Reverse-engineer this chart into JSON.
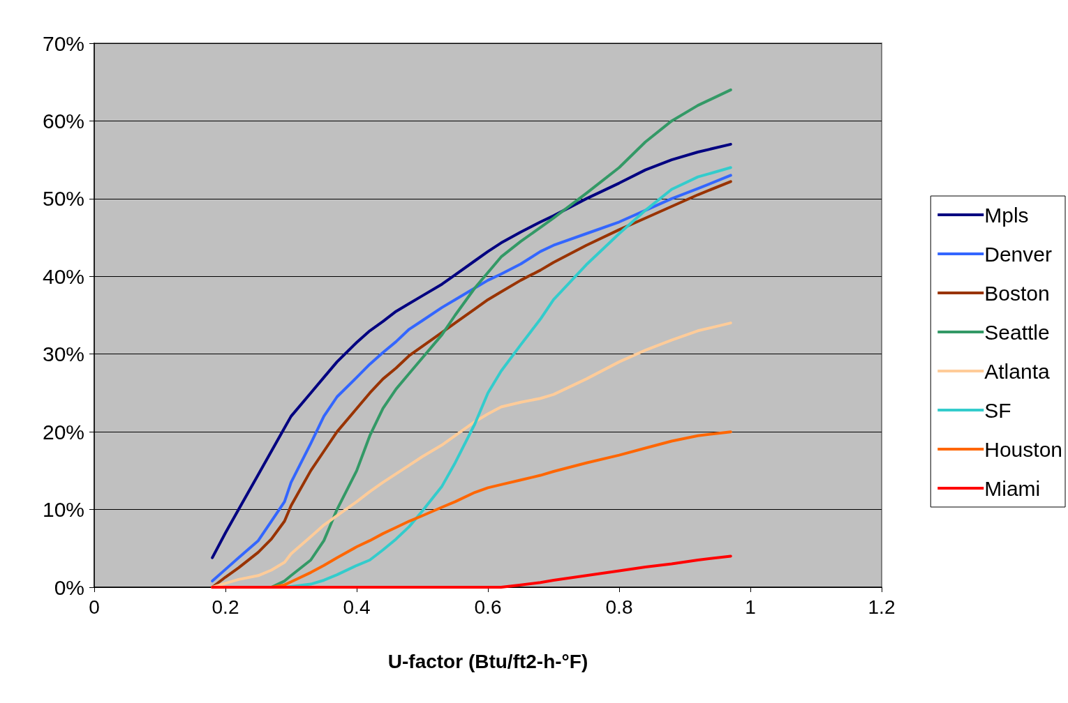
{
  "chart_data": {
    "type": "line",
    "xlabel": "U-factor (Btu/ft2-h-°F)",
    "x": [
      0.18,
      0.2,
      0.22,
      0.25,
      0.27,
      0.29,
      0.3,
      0.33,
      0.35,
      0.37,
      0.4,
      0.42,
      0.44,
      0.46,
      0.48,
      0.5,
      0.53,
      0.55,
      0.58,
      0.6,
      0.62,
      0.65,
      0.68,
      0.7,
      0.75,
      0.8,
      0.84,
      0.88,
      0.92,
      0.97
    ],
    "series": [
      {
        "name": "Mpls",
        "color": "#000080",
        "values": [
          3.8,
          7,
          10,
          14.5,
          17.5,
          20.5,
          22,
          25,
          27,
          29,
          31.5,
          33,
          34.2,
          35.5,
          36.5,
          37.5,
          39,
          40.2,
          42,
          43.2,
          44.3,
          45.7,
          47,
          47.8,
          50,
          52,
          53.7,
          55,
          56,
          57
        ]
      },
      {
        "name": "Denver",
        "color": "#3366ff",
        "values": [
          0.8,
          2.3,
          3.8,
          6,
          8.5,
          11,
          13.5,
          18.5,
          22,
          24.5,
          27,
          28.7,
          30.2,
          31.6,
          33.2,
          34.3,
          36,
          37,
          38.5,
          39.5,
          40.3,
          41.6,
          43.2,
          44,
          45.5,
          47,
          48.5,
          50,
          51.3,
          53
        ]
      },
      {
        "name": "Boston",
        "color": "#993300",
        "values": [
          0,
          1.3,
          2.5,
          4.5,
          6.2,
          8.5,
          10.5,
          15,
          17.5,
          20,
          23,
          25,
          26.8,
          28.2,
          29.8,
          31,
          32.8,
          34,
          35.8,
          37,
          38,
          39.5,
          40.8,
          41.8,
          44,
          46,
          47.5,
          49,
          50.5,
          52.2
        ]
      },
      {
        "name": "Seattle",
        "color": "#339966",
        "values": [
          null,
          null,
          null,
          0,
          0,
          0.8,
          1.5,
          3.5,
          6,
          10,
          15,
          19.5,
          23,
          25.5,
          27.5,
          29.5,
          32.5,
          35,
          38.5,
          40.5,
          42.5,
          44.5,
          46.3,
          47.5,
          50.7,
          54,
          57.3,
          60,
          62,
          64
        ]
      },
      {
        "name": "Atlanta",
        "color": "#ffcc99",
        "values": [
          0,
          0.5,
          1,
          1.5,
          2.2,
          3.2,
          4.3,
          6.5,
          8,
          9.2,
          11,
          12.3,
          13.5,
          14.6,
          15.7,
          16.8,
          18.3,
          19.5,
          21.3,
          22.3,
          23.2,
          23.8,
          24.3,
          24.8,
          26.8,
          29,
          30.5,
          31.8,
          33,
          34
        ]
      },
      {
        "name": "SF",
        "color": "#33cccc",
        "values": [
          null,
          null,
          null,
          null,
          0,
          0,
          0.1,
          0.4,
          0.9,
          1.6,
          2.8,
          3.5,
          4.8,
          6.2,
          7.8,
          9.8,
          13,
          16,
          21,
          25,
          27.8,
          31.2,
          34.5,
          37,
          41.5,
          45.5,
          48.5,
          51.2,
          52.8,
          54
        ]
      },
      {
        "name": "Houston",
        "color": "#ff6600",
        "values": [
          0,
          0,
          0,
          0,
          0,
          0.3,
          0.7,
          1.9,
          2.8,
          3.8,
          5.2,
          6,
          6.9,
          7.7,
          8.5,
          9.2,
          10.3,
          11,
          12.2,
          12.8,
          13.2,
          13.8,
          14.4,
          14.9,
          16,
          17,
          17.9,
          18.8,
          19.5,
          20
        ]
      },
      {
        "name": "Miami",
        "color": "#ff0000",
        "values": [
          0,
          0,
          0,
          0,
          0,
          0,
          0,
          0,
          0,
          0,
          0,
          0,
          0,
          0,
          0,
          0,
          0,
          0,
          0,
          0,
          0,
          0.3,
          0.6,
          0.9,
          1.5,
          2.1,
          2.6,
          3,
          3.5,
          4
        ]
      }
    ],
    "xlim": [
      0,
      1.2
    ],
    "xticks": [
      0,
      0.2,
      0.4,
      0.6,
      0.8,
      1,
      1.2
    ],
    "ylim": [
      0,
      70
    ],
    "yticks": [
      {
        "value": 0,
        "label": "0%"
      },
      {
        "value": 10,
        "label": "10%"
      },
      {
        "value": 20,
        "label": "20%"
      },
      {
        "value": 30,
        "label": "30%"
      },
      {
        "value": 40,
        "label": "40%"
      },
      {
        "value": 50,
        "label": "50%"
      },
      {
        "value": 60,
        "label": "60%"
      },
      {
        "value": 70,
        "label": "70%"
      }
    ],
    "grid": "y",
    "legend": "right",
    "marker": "none",
    "line_style": "solid"
  }
}
